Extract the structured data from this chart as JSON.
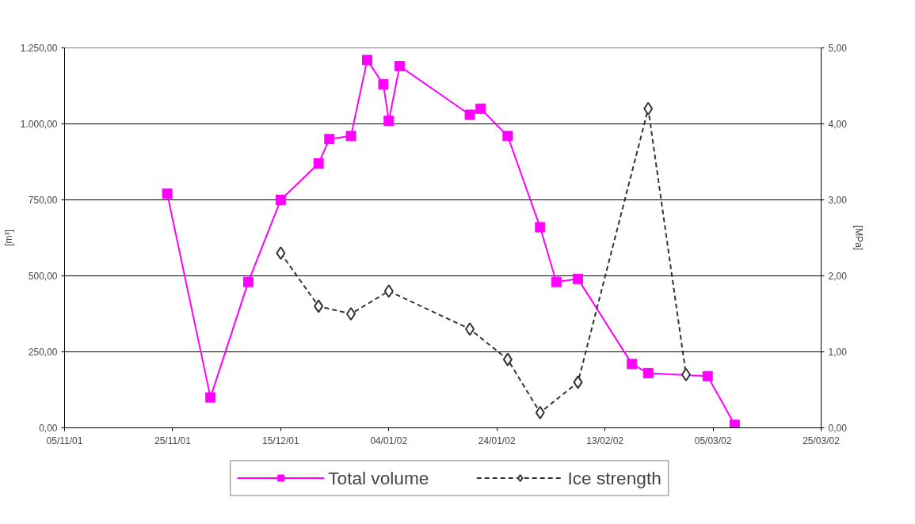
{
  "chart_data": {
    "type": "line",
    "ylabel": "[m³]",
    "y2label": "[MPa]",
    "xlim": [
      "2001-11-05",
      "2002-03-25"
    ],
    "xticks": [
      {
        "value": "2001-11-05",
        "label": "05/11/01"
      },
      {
        "value": "2001-11-25",
        "label": "25/11/01"
      },
      {
        "value": "2001-12-15",
        "label": "15/12/01"
      },
      {
        "value": "2002-01-04",
        "label": "04/01/02"
      },
      {
        "value": "2002-01-24",
        "label": "24/01/02"
      },
      {
        "value": "2002-02-13",
        "label": "13/02/02"
      },
      {
        "value": "2002-03-05",
        "label": "05/03/02"
      },
      {
        "value": "2002-03-25",
        "label": "25/03/02"
      }
    ],
    "ylim": [
      0,
      1250
    ],
    "yticks": [
      {
        "value": 0,
        "label": "0,00"
      },
      {
        "value": 250,
        "label": "250,00"
      },
      {
        "value": 500,
        "label": "500,00"
      },
      {
        "value": 750,
        "label": "750,00"
      },
      {
        "value": 1000,
        "label": "1.000,00"
      },
      {
        "value": 1250,
        "label": "1.250,00"
      }
    ],
    "y2lim": [
      0,
      5
    ],
    "y2ticks": [
      {
        "value": 0,
        "label": "0,00"
      },
      {
        "value": 1,
        "label": "1,00"
      },
      {
        "value": 2,
        "label": "2,00"
      },
      {
        "value": 3,
        "label": "3,00"
      },
      {
        "value": 4,
        "label": "4,00"
      },
      {
        "value": 5,
        "label": "5,00"
      }
    ],
    "grid": "y",
    "legend": "bottom",
    "series": [
      {
        "name": "Total volume",
        "color": "#ff00ff",
        "marker": "square",
        "line_style": "solid",
        "x": [
          "2001-11-24",
          "2001-12-02",
          "2001-12-09",
          "2001-12-15",
          "2001-12-22",
          "2001-12-24",
          "2001-12-28",
          "2001-12-31",
          "2002-01-03",
          "2002-01-04",
          "2002-01-06",
          "2002-01-19",
          "2002-01-21",
          "2002-01-26",
          "2002-02-01",
          "2002-02-04",
          "2002-02-08",
          "2002-02-18",
          "2002-02-21",
          "2002-03-04",
          "2002-03-09"
        ],
        "values": [
          770,
          100,
          480,
          750,
          870,
          950,
          960,
          1210,
          1130,
          1010,
          1190,
          1030,
          1050,
          960,
          660,
          480,
          490,
          210,
          180,
          170,
          10
        ]
      },
      {
        "name": "Ice strength",
        "color": "#333333",
        "marker": "diamond",
        "line_style": "dashed",
        "axis": "y2",
        "x": [
          "2001-12-15",
          "2001-12-22",
          "2001-12-28",
          "2002-01-04",
          "2002-01-19",
          "2002-01-26",
          "2002-02-01",
          "2002-02-08",
          "2002-02-21",
          "2002-02-28"
        ],
        "values": [
          2.3,
          1.6,
          1.5,
          1.8,
          1.3,
          0.9,
          0.2,
          0.6,
          4.2,
          0.7
        ]
      }
    ]
  }
}
